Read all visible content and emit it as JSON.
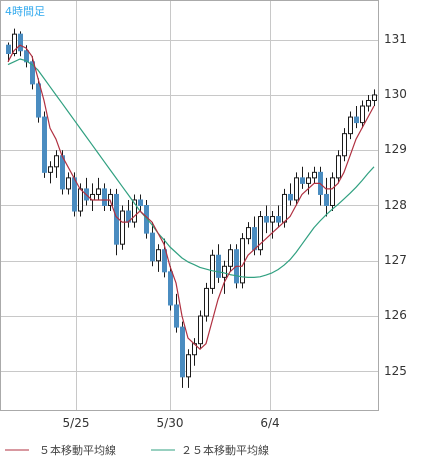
{
  "colors": {
    "background": "#ffffff",
    "frame": "#aaaaaa",
    "grid": "#c8c8c8",
    "candle_up": "#ffffff",
    "candle_down": "#4a8cc0",
    "candle_outline": "#1a1a1a",
    "ma5": "#b03040",
    "ma25": "#30a080",
    "timeframe_text": "#33aaee"
  },
  "chart_data": {
    "type": "candlestick",
    "timeframe": "4時間足",
    "x_tick_labels": [
      "5/25",
      "5/30",
      "6/4"
    ],
    "y_tick_labels": [
      "125",
      "126",
      "127",
      "128",
      "129",
      "130",
      "131"
    ],
    "ylim": [
      124.3,
      131.7
    ],
    "grid": true,
    "legend_position": "bottom",
    "legend": [
      {
        "name": "５本移動平均線",
        "color": "#b03040"
      },
      {
        "name": "２５本移動平均線",
        "color": "#30a080"
      }
    ],
    "candles": [
      [
        130.9,
        130.95,
        130.6,
        130.75
      ],
      [
        130.75,
        131.2,
        130.7,
        131.1
      ],
      [
        131.1,
        131.15,
        130.7,
        130.8
      ],
      [
        130.8,
        130.9,
        130.5,
        130.6
      ],
      [
        130.6,
        130.7,
        130.1,
        130.2
      ],
      [
        130.2,
        130.3,
        129.5,
        129.6
      ],
      [
        129.6,
        129.7,
        128.5,
        128.6
      ],
      [
        128.6,
        128.8,
        128.4,
        128.7
      ],
      [
        128.7,
        129.0,
        128.5,
        128.9
      ],
      [
        128.9,
        129.0,
        128.2,
        128.3
      ],
      [
        128.3,
        128.6,
        128.2,
        128.5
      ],
      [
        128.5,
        128.6,
        127.8,
        127.9
      ],
      [
        127.9,
        128.4,
        127.8,
        128.3
      ],
      [
        128.3,
        128.5,
        128.0,
        128.1
      ],
      [
        128.1,
        128.4,
        127.9,
        128.2
      ],
      [
        128.2,
        128.5,
        128.1,
        128.3
      ],
      [
        128.3,
        128.4,
        127.9,
        128.0
      ],
      [
        128.0,
        128.3,
        127.9,
        128.2
      ],
      [
        128.2,
        128.3,
        127.1,
        127.3
      ],
      [
        127.3,
        128.0,
        127.2,
        127.9
      ],
      [
        127.9,
        128.1,
        127.6,
        127.7
      ],
      [
        127.7,
        128.2,
        127.6,
        128.1
      ],
      [
        128.1,
        128.2,
        127.9,
        128.0
      ],
      [
        128.0,
        128.1,
        127.4,
        127.5
      ],
      [
        127.5,
        127.7,
        126.9,
        127.0
      ],
      [
        127.0,
        127.3,
        126.8,
        127.2
      ],
      [
        127.2,
        127.4,
        126.7,
        126.8
      ],
      [
        126.8,
        126.9,
        126.1,
        126.2
      ],
      [
        126.2,
        126.4,
        125.7,
        125.8
      ],
      [
        125.8,
        125.9,
        124.7,
        124.9
      ],
      [
        124.9,
        125.4,
        124.7,
        125.3
      ],
      [
        125.3,
        125.6,
        125.1,
        125.5
      ],
      [
        125.5,
        126.1,
        125.4,
        126.0
      ],
      [
        126.0,
        126.6,
        125.9,
        126.5
      ],
      [
        126.5,
        127.2,
        126.4,
        127.1
      ],
      [
        127.1,
        127.3,
        126.6,
        126.7
      ],
      [
        126.7,
        127.0,
        126.4,
        126.9
      ],
      [
        126.9,
        127.3,
        126.8,
        127.2
      ],
      [
        127.2,
        127.3,
        126.5,
        126.6
      ],
      [
        126.6,
        127.5,
        126.5,
        127.4
      ],
      [
        127.4,
        127.7,
        127.3,
        127.6
      ],
      [
        127.6,
        127.8,
        127.1,
        127.2
      ],
      [
        127.2,
        127.9,
        127.1,
        127.8
      ],
      [
        127.8,
        128.0,
        127.5,
        127.7
      ],
      [
        127.7,
        127.9,
        127.4,
        127.8
      ],
      [
        127.8,
        128.0,
        127.6,
        127.7
      ],
      [
        127.7,
        128.3,
        127.6,
        128.2
      ],
      [
        128.2,
        128.4,
        128.0,
        128.1
      ],
      [
        128.1,
        128.6,
        128.0,
        128.5
      ],
      [
        128.5,
        128.7,
        128.3,
        128.4
      ],
      [
        128.4,
        128.6,
        128.2,
        128.5
      ],
      [
        128.5,
        128.7,
        128.4,
        128.6
      ],
      [
        128.6,
        128.7,
        128.0,
        128.2
      ],
      [
        128.2,
        128.5,
        127.8,
        128.0
      ],
      [
        128.0,
        128.6,
        127.9,
        128.5
      ],
      [
        128.5,
        129.0,
        128.4,
        128.9
      ],
      [
        128.9,
        129.4,
        128.8,
        129.3
      ],
      [
        129.3,
        129.7,
        129.2,
        129.6
      ],
      [
        129.6,
        129.8,
        129.4,
        129.5
      ],
      [
        129.5,
        129.9,
        129.4,
        129.8
      ],
      [
        129.8,
        130.0,
        129.7,
        129.9
      ],
      [
        129.9,
        130.1,
        129.8,
        130.0
      ]
    ],
    "ma5": [
      130.6,
      130.8,
      130.9,
      130.85,
      130.7,
      130.3,
      129.9,
      129.4,
      129.2,
      128.9,
      128.7,
      128.5,
      128.3,
      128.2,
      128.1,
      128.1,
      128.1,
      128.1,
      127.8,
      127.7,
      127.7,
      127.8,
      127.9,
      127.8,
      127.7,
      127.5,
      127.3,
      126.9,
      126.6,
      126.0,
      125.6,
      125.5,
      125.4,
      125.5,
      125.9,
      126.3,
      126.6,
      126.8,
      126.9,
      126.9,
      127.1,
      127.2,
      127.3,
      127.4,
      127.5,
      127.6,
      127.7,
      127.8,
      128.0,
      128.2,
      128.3,
      128.4,
      128.4,
      128.3,
      128.3,
      128.4,
      128.6,
      128.9,
      129.2,
      129.4,
      129.6,
      129.8
    ],
    "ma25": [
      130.55,
      130.6,
      130.65,
      130.62,
      130.55,
      130.45,
      130.3,
      130.15,
      130.0,
      129.85,
      129.7,
      129.55,
      129.4,
      129.25,
      129.1,
      128.95,
      128.8,
      128.65,
      128.5,
      128.35,
      128.2,
      128.05,
      127.9,
      127.78,
      127.65,
      127.5,
      127.38,
      127.25,
      127.15,
      127.05,
      126.98,
      126.93,
      126.88,
      126.85,
      126.82,
      126.8,
      126.78,
      126.75,
      126.73,
      126.71,
      126.7,
      126.7,
      126.71,
      126.74,
      126.78,
      126.84,
      126.92,
      127.02,
      127.15,
      127.3,
      127.45,
      127.6,
      127.72,
      127.83,
      127.93,
      128.02,
      128.12,
      128.22,
      128.33,
      128.45,
      128.58,
      128.7
    ]
  }
}
